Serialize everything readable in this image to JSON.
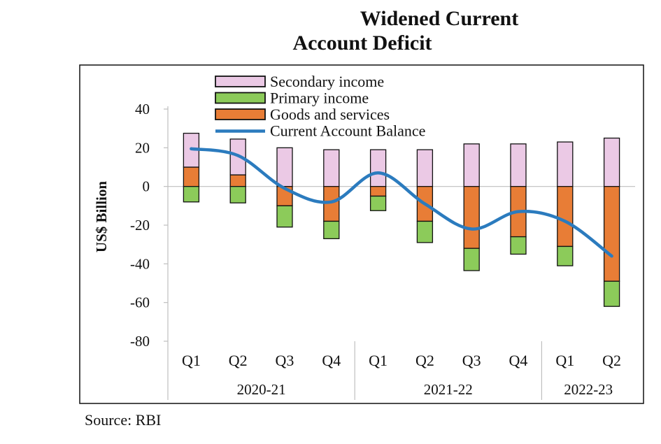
{
  "title_line1": "Widened Current",
  "title_line2": "Account Deficit",
  "source": "Source: RBI",
  "colors": {
    "secondary": "#EBC9E5",
    "primary": "#8CCB5A",
    "goods": "#E87D36",
    "cab": "#2B7BBE",
    "frame": "#111111",
    "grid": "#BFBFBF"
  },
  "chart_data": {
    "type": "bar",
    "stacked": true,
    "title": "Widened Current Account Deficit",
    "ylabel": "US$ Billion",
    "xlabel": "",
    "ylim": [
      -80,
      40
    ],
    "yticks": [
      40,
      20,
      0,
      -20,
      -40,
      -60,
      -80
    ],
    "categories": [
      "Q1",
      "Q2",
      "Q3",
      "Q4",
      "Q1",
      "Q2",
      "Q3",
      "Q4",
      "Q1",
      "Q2"
    ],
    "groups": [
      {
        "label": "2020-21",
        "count": 4
      },
      {
        "label": "2021-22",
        "count": 4
      },
      {
        "label": "2022-23",
        "count": 2
      }
    ],
    "series": [
      {
        "name": "Secondary income",
        "kind": "bar",
        "values": [
          17.5,
          18.5,
          20,
          19,
          19,
          19,
          22,
          22,
          23,
          25
        ]
      },
      {
        "name": "Primary income",
        "kind": "bar",
        "values": [
          -8,
          -8.5,
          -11,
          -9,
          -7.5,
          -11,
          -11.5,
          -9,
          -10,
          -13
        ]
      },
      {
        "name": "Goods and services",
        "kind": "bar",
        "values": [
          10,
          6,
          -10,
          -18,
          -5,
          -18,
          -32,
          -26,
          -31,
          -49
        ]
      },
      {
        "name": "Current Account Balance",
        "kind": "line",
        "values": [
          19.5,
          16,
          -1,
          -8,
          7,
          -9,
          -22,
          -13,
          -18,
          -36
        ]
      }
    ],
    "legend": [
      "Secondary income",
      "Primary income",
      "Goods and services",
      "Current Account Balance"
    ]
  }
}
